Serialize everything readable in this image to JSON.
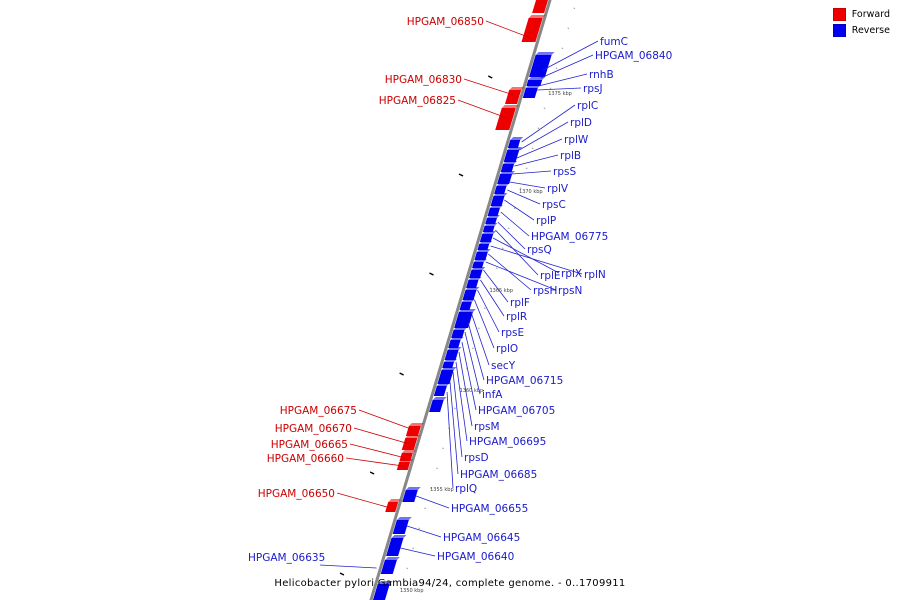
{
  "legend": {
    "forward_label": "Forward",
    "reverse_label": "Reverse",
    "forward_color": "#ee0000",
    "reverse_color": "#0000ee"
  },
  "footer": {
    "text": "Helicobacter pylori Gambia94/24, complete genome. - 0..1709911"
  },
  "colors": {
    "backbone": "#888888",
    "leader_forward": "#cc0000",
    "leader_reverse": "#2222cc"
  },
  "scale_labels": [
    "1375 kbp",
    "1370 kbp",
    "1365 kbp",
    "1360 kbp",
    "1355 kbp",
    "1350 kbp"
  ],
  "forward_genes": [
    "HPGAM_06850",
    "HPGAM_06830",
    "HPGAM_06825",
    "HPGAM_06675",
    "HPGAM_06670",
    "HPGAM_06665",
    "HPGAM_06660",
    "HPGAM_06650"
  ],
  "reverse_genes": [
    "fumC",
    "HPGAM_06840",
    "rnhB",
    "rpsJ",
    "rplC",
    "rplD",
    "rplW",
    "rplB",
    "rpsS",
    "rplV",
    "rpsC",
    "rplP",
    "HPGAM_06775",
    "rpsQ",
    "rplE",
    "rplX",
    "rplN",
    "rpsH",
    "rpsN",
    "rplF",
    "rplR",
    "rpsE",
    "rplO",
    "secY",
    "HPGAM_06715",
    "infA",
    "HPGAM_06705",
    "rpsM",
    "HPGAM_06695",
    "rpsD",
    "HPGAM_06685",
    "rplQ",
    "HPGAM_06655",
    "HPGAM_06645",
    "HPGAM_06640",
    "HPGAM_06635"
  ]
}
